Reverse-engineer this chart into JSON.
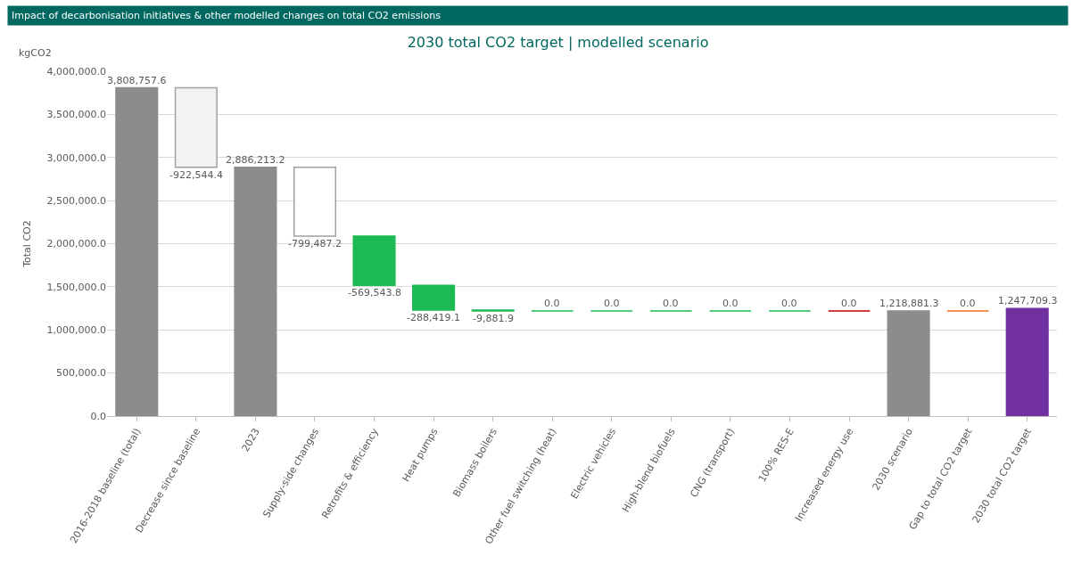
{
  "chart_data": {
    "type": "bar",
    "title": "2030 total CO2 target | modelled scenario",
    "ylabel": "Total CO2",
    "annotations": [
      "Impact of decarbonisation initiatives & other modelled changes on total CO2 emissions",
      "kgCO2"
    ],
    "categories": [
      "2016-2018 baseline (total)",
      "Decrease since baseline",
      "2023",
      "Supply-side changes",
      "Retrofits & efficiency",
      "Heat pumps",
      "Biomass boilers",
      "Other fuel switching (heat)",
      "Electric vehicles",
      "High-blend biofuels",
      "CNG (transport)",
      "100% RES-E",
      "Increased energy use",
      "2030 scenario",
      "Gap to total CO2 target",
      "2030 total CO2 target"
    ],
    "values": [
      3808757.6,
      -922544.4,
      2886213.2,
      -799487.2,
      -569543.8,
      -288419.1,
      -9881.9,
      0.0,
      0.0,
      0.0,
      0.0,
      0.0,
      0.0,
      1218881.3,
      0.0,
      1247709.3
    ],
    "base": [
      0,
      3808757.6,
      0,
      2886213.2,
      2086726.0,
      1517182.2,
      1228763.1,
      1218881.3,
      1218881.3,
      1218881.3,
      1218881.3,
      1218881.3,
      1218881.3,
      0,
      1218881.3,
      0
    ],
    "colors": [
      "#8c8c8c",
      "#f2f2f2",
      "#8c8c8c",
      "#ffffff",
      "#1db954",
      "#1db954",
      "#1db954",
      "#1db954",
      "#1db954",
      "#1db954",
      "#1db954",
      "#1db954",
      "#c00000",
      "#8c8c8c",
      "#f07020",
      "#7030a0"
    ],
    "value_labels": [
      "3,808,757.6",
      "-922,544.4",
      "2,886,213.2",
      "-799,487.2",
      "-569,543.8",
      "-288,419.1",
      "-9,881.9",
      "0.0",
      "0.0",
      "0.0",
      "0.0",
      "0.0",
      "0.0",
      "1,218,881.3",
      "0.0",
      "1,247,709.3"
    ],
    "ylim": [
      0,
      4000000
    ],
    "yticks": [
      {
        "value": 0,
        "label": "0.0"
      },
      {
        "value": 500000,
        "label": "500,000.0"
      },
      {
        "value": 1000000,
        "label": "1,000,000.0"
      },
      {
        "value": 1500000,
        "label": "1,500,000.0"
      },
      {
        "value": 2000000,
        "label": "2,000,000.0"
      },
      {
        "value": 2500000,
        "label": "2,500,000.0"
      },
      {
        "value": 3000000,
        "label": "3,000,000.0"
      },
      {
        "value": 3500000,
        "label": "3,500,000.0"
      },
      {
        "value": 4000000,
        "label": "4,000,000.0"
      }
    ],
    "grid": "y"
  }
}
